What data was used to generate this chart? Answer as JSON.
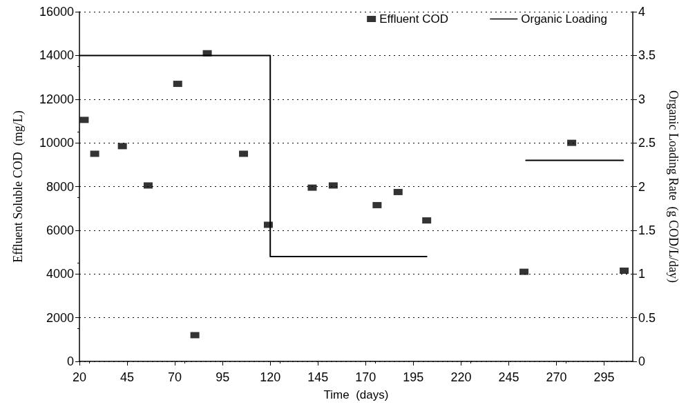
{
  "chart_data": {
    "type": "scatter",
    "xlabel": "Time  (days)",
    "ylabel": "Effluent Soluble COD  (mg/L)",
    "y2label": "Organic Loading Rate  (g COD/L/day)",
    "xlim": [
      20,
      310
    ],
    "xticks": [
      20,
      45,
      70,
      95,
      120,
      145,
      170,
      195,
      220,
      245,
      270,
      295
    ],
    "ylim": [
      0,
      16000
    ],
    "yticks": [
      0,
      2000,
      4000,
      6000,
      8000,
      10000,
      12000,
      14000,
      16000
    ],
    "y2lim": [
      0,
      4
    ],
    "y2ticks": [
      0,
      0.5,
      1,
      1.5,
      2,
      2.5,
      3,
      3.5,
      4
    ],
    "grid": "y",
    "legend": "top right",
    "marker": "square",
    "series": [
      {
        "name": "Effluent COD",
        "color": "#000000",
        "x": [
          22.5,
          28,
          42.5,
          56,
          71.5,
          80.5,
          87,
          106,
          119,
          142,
          153,
          176,
          187,
          202,
          253,
          278,
          305.5
        ],
        "values": [
          11050,
          9500,
          9850,
          8050,
          12700,
          1200,
          14100,
          9500,
          6250,
          7950,
          8050,
          7150,
          7750,
          6450,
          4100,
          10000,
          4150
        ]
      },
      {
        "name": "Organic Loading",
        "type": "line",
        "axis": "y2",
        "marker": "none",
        "line_style": "solid",
        "color": "#000000",
        "x": [
          20,
          120,
          120,
          202,
          228,
          254,
          305
        ],
        "values": [
          3.5,
          3.5,
          1.2,
          1.2,
          null,
          2.3,
          2.3
        ]
      }
    ]
  }
}
